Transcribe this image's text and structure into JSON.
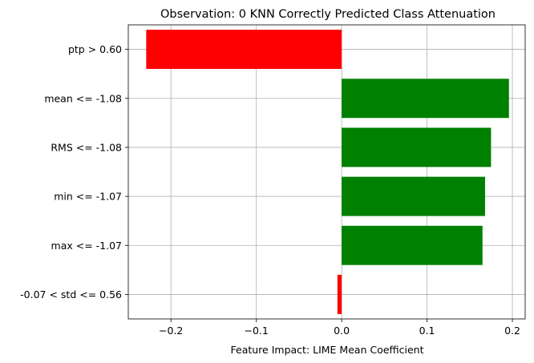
{
  "chart_data": {
    "type": "bar",
    "orientation": "horizontal",
    "title": "Observation: 0 KNN Correctly Predicted Class Attenuation",
    "xlabel": "Feature Impact: LIME Mean Coefficient",
    "ylabel": "",
    "xlim": [
      -0.25,
      0.215
    ],
    "grid": true,
    "x_ticks": [
      -0.2,
      -0.1,
      0.0,
      0.1,
      0.2
    ],
    "x_tick_labels": [
      "−0.2",
      "−0.1",
      "0.0",
      "0.1",
      "0.2"
    ],
    "categories": [
      "ptp > 0.60",
      "mean <= -1.08",
      "RMS <= -1.08",
      "min <= -1.07",
      "max <= -1.07",
      "-0.07 < std <= 0.56"
    ],
    "values": [
      -0.229,
      0.196,
      0.175,
      0.168,
      0.165,
      -0.005
    ],
    "colors": {
      "positive": "#008000",
      "negative": "#ff0000"
    }
  }
}
